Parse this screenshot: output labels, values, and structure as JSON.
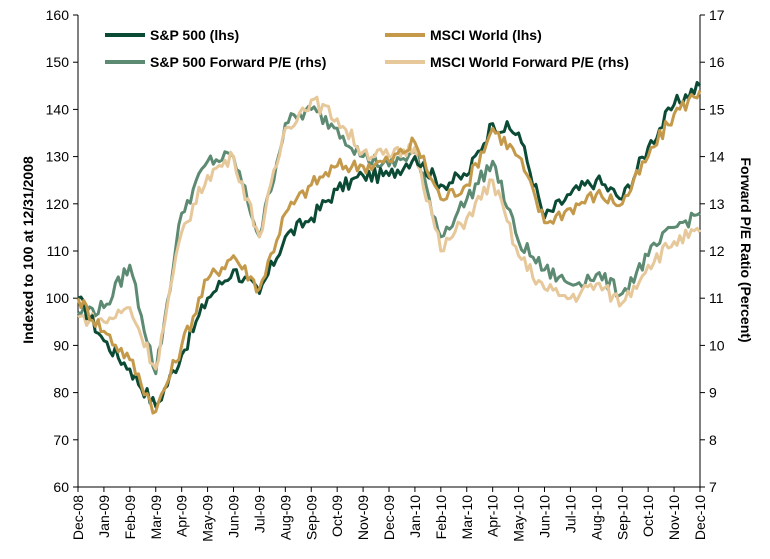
{
  "chart_data": {
    "type": "line",
    "title": "",
    "x_categories": [
      "Dec-08",
      "Jan-09",
      "Feb-09",
      "Mar-09",
      "Apr-09",
      "May-09",
      "Jun-09",
      "Jul-09",
      "Aug-09",
      "Sep-09",
      "Oct-09",
      "Nov-09",
      "Dec-09",
      "Jan-10",
      "Feb-10",
      "Mar-10",
      "Apr-10",
      "May-10",
      "Jun-10",
      "Jul-10",
      "Aug-10",
      "Sep-10",
      "Oct-10",
      "Nov-10",
      "Dec-10"
    ],
    "y_left": {
      "label": "Indexed to 100 at 12/31/2008",
      "min": 60,
      "max": 160,
      "ticks": [
        "60",
        "70",
        "80",
        "90",
        "100",
        "110",
        "120",
        "130",
        "140",
        "150",
        "160"
      ]
    },
    "y_right": {
      "label": "Forward P/E Ratio (Percent)",
      "min": 7,
      "max": 17,
      "ticks": [
        "7",
        "8",
        "9",
        "10",
        "11",
        "12",
        "13",
        "14",
        "15",
        "16",
        "17"
      ]
    },
    "grid": false,
    "legend": {
      "placement": "top",
      "columns": 2
    },
    "series": [
      {
        "name": "S&P 500 (lhs)",
        "axis": "left",
        "color": "#0b4a35",
        "values": [
          100,
          91,
          85,
          77,
          88,
          100,
          106,
          101,
          113,
          117,
          123,
          126,
          126,
          130,
          124,
          126,
          137,
          135,
          117,
          122,
          125,
          121,
          132,
          141,
          145
        ]
      },
      {
        "name": "MSCI World (lhs)",
        "axis": "left",
        "color": "#c49a4a",
        "values": [
          100,
          93,
          87,
          76,
          90,
          104,
          109,
          102,
          118,
          124,
          128,
          128,
          129,
          133,
          121,
          124,
          136,
          130,
          116,
          119,
          122,
          120,
          130,
          139,
          144
        ]
      },
      {
        "name": "S&P 500 Forward P/E (rhs)",
        "axis": "right",
        "color": "#5d8a72",
        "values": [
          10.7,
          10.8,
          11.7,
          9.4,
          12.8,
          13.9,
          14.0,
          12.3,
          14.7,
          15.0,
          14.6,
          14.0,
          13.8,
          14.1,
          12.3,
          13.1,
          13.9,
          12.2,
          11.6,
          11.3,
          11.5,
          11.1,
          11.9,
          12.5,
          12.8
        ]
      },
      {
        "name": "MSCI World Forward P/E (rhs)",
        "axis": "right",
        "color": "#e6c89a",
        "values": [
          10.6,
          10.5,
          10.8,
          9.5,
          12.4,
          13.6,
          14.0,
          12.3,
          14.6,
          15.2,
          14.8,
          14.1,
          14.0,
          14.2,
          12.0,
          12.7,
          13.5,
          11.9,
          11.2,
          11.0,
          11.3,
          10.9,
          11.7,
          12.2,
          12.4
        ]
      }
    ]
  }
}
